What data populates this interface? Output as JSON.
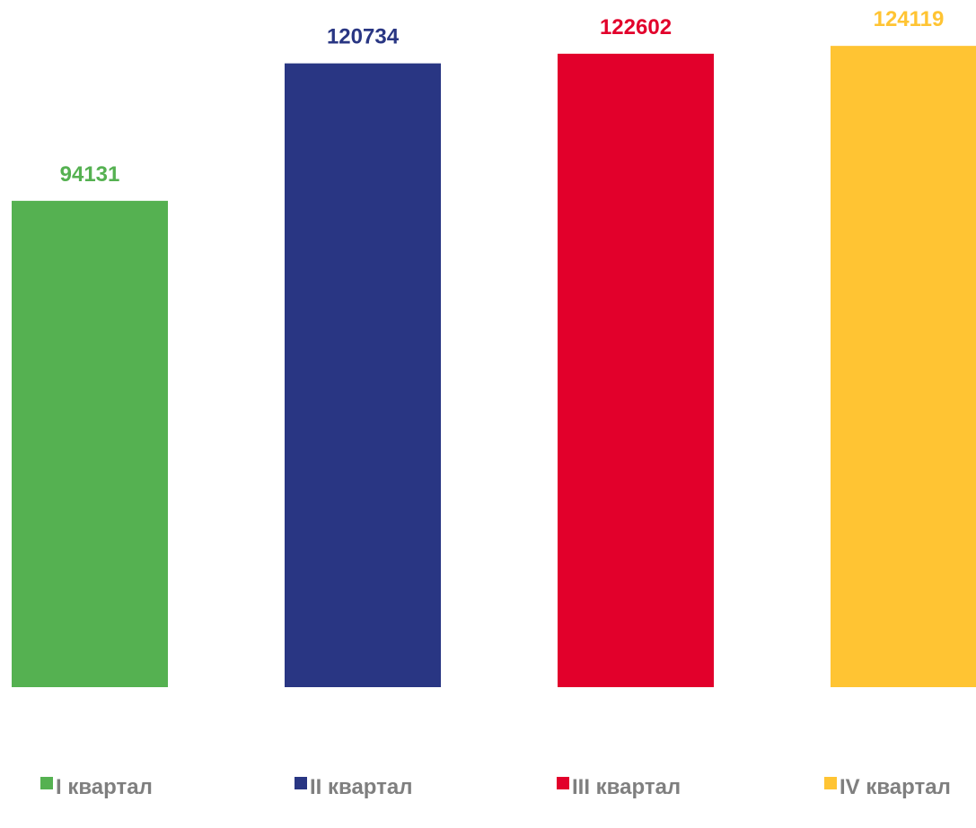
{
  "chart_data": {
    "type": "bar",
    "categories": [
      "I квартал",
      "II квартал",
      "III квартал",
      "IV квартал"
    ],
    "values": [
      94131,
      120734,
      122602,
      124119
    ],
    "data_labels": [
      "94131",
      "120734",
      "122602",
      "124119"
    ],
    "colors": [
      "#55b151",
      "#293683",
      "#e2002b",
      "#ffc433"
    ],
    "ylim": [
      0,
      133000
    ],
    "grid": false,
    "legend": {
      "position": "bottom",
      "entries": [
        "I квартал",
        "II квартал",
        "III квартал",
        "IV квартал"
      ],
      "text_color": "#7f7f7f"
    },
    "title": "",
    "xlabel": "",
    "ylabel": ""
  }
}
